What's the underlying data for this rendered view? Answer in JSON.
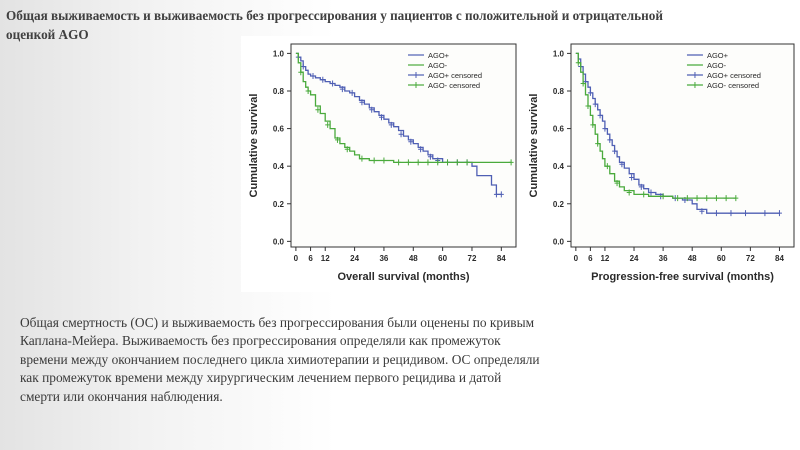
{
  "slide": {
    "title": "Общая выживаемость и выживаемость без прогрессирования у пациентов с положительной и отрицательной оценкой AGO",
    "body": "Общая смертность (ОС) и выживаемость без прогрессирования были оценены по кривым Каплана-Мейера. Выживаемость без прогрессирования  определяли как промежуток времени между окончанием последнего цикла химиотерапии и рецидивом. ОС определяли как промежуток времени между хирургическим лечением первого рецидива и датой смерти или окончания наблюдения."
  },
  "colors": {
    "ago_plus": "#4f5fb4",
    "ago_minus": "#4aaa3c",
    "axis": "#333333"
  },
  "chart_data": [
    {
      "type": "line",
      "step": true,
      "xlabel": "Overall survival (months)",
      "ylabel": "Cumulative survival",
      "xticks": [
        0,
        6,
        12,
        24,
        36,
        48,
        60,
        72,
        84
      ],
      "yticks": [
        "0.0",
        "0.2",
        "0.4",
        "0.6",
        "0.8",
        "1.0"
      ],
      "xlim": [
        -2,
        90
      ],
      "ylim": [
        -0.03,
        1.05
      ],
      "legend": [
        "AGO+",
        "AGO-",
        "AGO+ censored",
        "AGO- censored"
      ],
      "legend_position": "top-right",
      "series": [
        {
          "name": "AGO+",
          "color": "#4f5fb4",
          "points": [
            [
              0,
              1.0
            ],
            [
              1,
              0.98
            ],
            [
              2,
              0.96
            ],
            [
              3,
              0.93
            ],
            [
              4,
              0.91
            ],
            [
              5,
              0.89
            ],
            [
              6,
              0.88
            ],
            [
              8,
              0.87
            ],
            [
              10,
              0.86
            ],
            [
              12,
              0.85
            ],
            [
              14,
              0.84
            ],
            [
              16,
              0.83
            ],
            [
              18,
              0.82
            ],
            [
              20,
              0.8
            ],
            [
              22,
              0.79
            ],
            [
              24,
              0.77
            ],
            [
              26,
              0.75
            ],
            [
              28,
              0.73
            ],
            [
              30,
              0.71
            ],
            [
              32,
              0.69
            ],
            [
              34,
              0.67
            ],
            [
              36,
              0.65
            ],
            [
              38,
              0.63
            ],
            [
              40,
              0.61
            ],
            [
              42,
              0.59
            ],
            [
              44,
              0.56
            ],
            [
              46,
              0.54
            ],
            [
              48,
              0.52
            ],
            [
              50,
              0.5
            ],
            [
              52,
              0.48
            ],
            [
              54,
              0.46
            ],
            [
              56,
              0.44
            ],
            [
              60,
              0.42
            ],
            [
              72,
              0.4
            ],
            [
              74,
              0.35
            ],
            [
              80,
              0.3
            ],
            [
              82,
              0.25
            ],
            [
              84,
              0.25
            ]
          ],
          "censored": [
            [
              1,
              0.98
            ],
            [
              3,
              0.93
            ],
            [
              7,
              0.88
            ],
            [
              11,
              0.86
            ],
            [
              15,
              0.84
            ],
            [
              19,
              0.81
            ],
            [
              23,
              0.79
            ],
            [
              27,
              0.74
            ],
            [
              31,
              0.7
            ],
            [
              35,
              0.66
            ],
            [
              39,
              0.62
            ],
            [
              43,
              0.57
            ],
            [
              47,
              0.53
            ],
            [
              51,
              0.49
            ],
            [
              55,
              0.45
            ],
            [
              58,
              0.43
            ],
            [
              62,
              0.42
            ],
            [
              66,
              0.42
            ],
            [
              70,
              0.42
            ],
            [
              82,
              0.25
            ],
            [
              84,
              0.25
            ]
          ]
        },
        {
          "name": "AGO-",
          "color": "#4aaa3c",
          "points": [
            [
              0,
              1.0
            ],
            [
              1,
              0.95
            ],
            [
              2,
              0.9
            ],
            [
              3,
              0.85
            ],
            [
              4,
              0.82
            ],
            [
              5,
              0.8
            ],
            [
              6,
              0.78
            ],
            [
              8,
              0.72
            ],
            [
              10,
              0.68
            ],
            [
              12,
              0.64
            ],
            [
              14,
              0.6
            ],
            [
              16,
              0.55
            ],
            [
              18,
              0.52
            ],
            [
              20,
              0.5
            ],
            [
              22,
              0.48
            ],
            [
              24,
              0.46
            ],
            [
              26,
              0.44
            ],
            [
              30,
              0.43
            ],
            [
              40,
              0.42
            ],
            [
              88,
              0.42
            ]
          ],
          "censored": [
            [
              2,
              0.9
            ],
            [
              5,
              0.8
            ],
            [
              9,
              0.7
            ],
            [
              13,
              0.62
            ],
            [
              17,
              0.54
            ],
            [
              21,
              0.49
            ],
            [
              27,
              0.44
            ],
            [
              32,
              0.43
            ],
            [
              36,
              0.43
            ],
            [
              42,
              0.42
            ],
            [
              46,
              0.42
            ],
            [
              50,
              0.42
            ],
            [
              54,
              0.42
            ],
            [
              58,
              0.42
            ],
            [
              62,
              0.42
            ],
            [
              66,
              0.42
            ],
            [
              70,
              0.42
            ],
            [
              88,
              0.42
            ]
          ]
        }
      ]
    },
    {
      "type": "line",
      "step": true,
      "xlabel": "Progression-free survival (months)",
      "ylabel": "Cumulative survival",
      "xticks": [
        0,
        6,
        12,
        24,
        36,
        48,
        60,
        72,
        84
      ],
      "yticks": [
        "0.0",
        "0.2",
        "0.4",
        "0.6",
        "0.8",
        "1.0"
      ],
      "xlim": [
        -2,
        90
      ],
      "ylim": [
        -0.03,
        1.05
      ],
      "legend": [
        "AGO+",
        "AGO-",
        "AGO+ censored",
        "AGO- censored"
      ],
      "legend_position": "top-right",
      "series": [
        {
          "name": "AGO+",
          "color": "#4f5fb4",
          "points": [
            [
              0,
              1.0
            ],
            [
              1,
              0.97
            ],
            [
              2,
              0.93
            ],
            [
              3,
              0.89
            ],
            [
              4,
              0.85
            ],
            [
              5,
              0.82
            ],
            [
              6,
              0.79
            ],
            [
              7,
              0.76
            ],
            [
              8,
              0.73
            ],
            [
              9,
              0.7
            ],
            [
              10,
              0.67
            ],
            [
              11,
              0.64
            ],
            [
              12,
              0.6
            ],
            [
              13,
              0.57
            ],
            [
              14,
              0.54
            ],
            [
              15,
              0.51
            ],
            [
              16,
              0.48
            ],
            [
              17,
              0.45
            ],
            [
              18,
              0.42
            ],
            [
              20,
              0.39
            ],
            [
              22,
              0.36
            ],
            [
              24,
              0.33
            ],
            [
              26,
              0.3
            ],
            [
              28,
              0.28
            ],
            [
              30,
              0.26
            ],
            [
              33,
              0.25
            ],
            [
              36,
              0.24
            ],
            [
              40,
              0.23
            ],
            [
              44,
              0.22
            ],
            [
              48,
              0.2
            ],
            [
              50,
              0.17
            ],
            [
              54,
              0.15
            ],
            [
              84,
              0.15
            ]
          ],
          "censored": [
            [
              2,
              0.93
            ],
            [
              4,
              0.85
            ],
            [
              6,
              0.79
            ],
            [
              8,
              0.73
            ],
            [
              10,
              0.67
            ],
            [
              12,
              0.6
            ],
            [
              14,
              0.54
            ],
            [
              16,
              0.48
            ],
            [
              19,
              0.41
            ],
            [
              23,
              0.34
            ],
            [
              27,
              0.29
            ],
            [
              31,
              0.26
            ],
            [
              35,
              0.24
            ],
            [
              41,
              0.23
            ],
            [
              45,
              0.22
            ],
            [
              52,
              0.16
            ],
            [
              58,
              0.15
            ],
            [
              64,
              0.15
            ],
            [
              70,
              0.15
            ],
            [
              78,
              0.15
            ],
            [
              84,
              0.15
            ]
          ]
        },
        {
          "name": "AGO-",
          "color": "#4aaa3c",
          "points": [
            [
              0,
              1.0
            ],
            [
              1,
              0.95
            ],
            [
              2,
              0.9
            ],
            [
              3,
              0.84
            ],
            [
              4,
              0.78
            ],
            [
              5,
              0.72
            ],
            [
              6,
              0.67
            ],
            [
              7,
              0.62
            ],
            [
              8,
              0.57
            ],
            [
              9,
              0.52
            ],
            [
              10,
              0.48
            ],
            [
              11,
              0.44
            ],
            [
              12,
              0.4
            ],
            [
              14,
              0.36
            ],
            [
              16,
              0.32
            ],
            [
              18,
              0.29
            ],
            [
              20,
              0.27
            ],
            [
              24,
              0.25
            ],
            [
              30,
              0.24
            ],
            [
              40,
              0.23
            ],
            [
              48,
              0.23
            ],
            [
              66,
              0.23
            ]
          ],
          "censored": [
            [
              1,
              0.95
            ],
            [
              3,
              0.84
            ],
            [
              5,
              0.72
            ],
            [
              7,
              0.62
            ],
            [
              9,
              0.52
            ],
            [
              13,
              0.4
            ],
            [
              17,
              0.31
            ],
            [
              22,
              0.26
            ],
            [
              28,
              0.25
            ],
            [
              36,
              0.24
            ],
            [
              42,
              0.23
            ],
            [
              46,
              0.23
            ],
            [
              50,
              0.23
            ],
            [
              54,
              0.23
            ],
            [
              58,
              0.23
            ],
            [
              62,
              0.23
            ],
            [
              66,
              0.23
            ]
          ]
        }
      ]
    }
  ]
}
